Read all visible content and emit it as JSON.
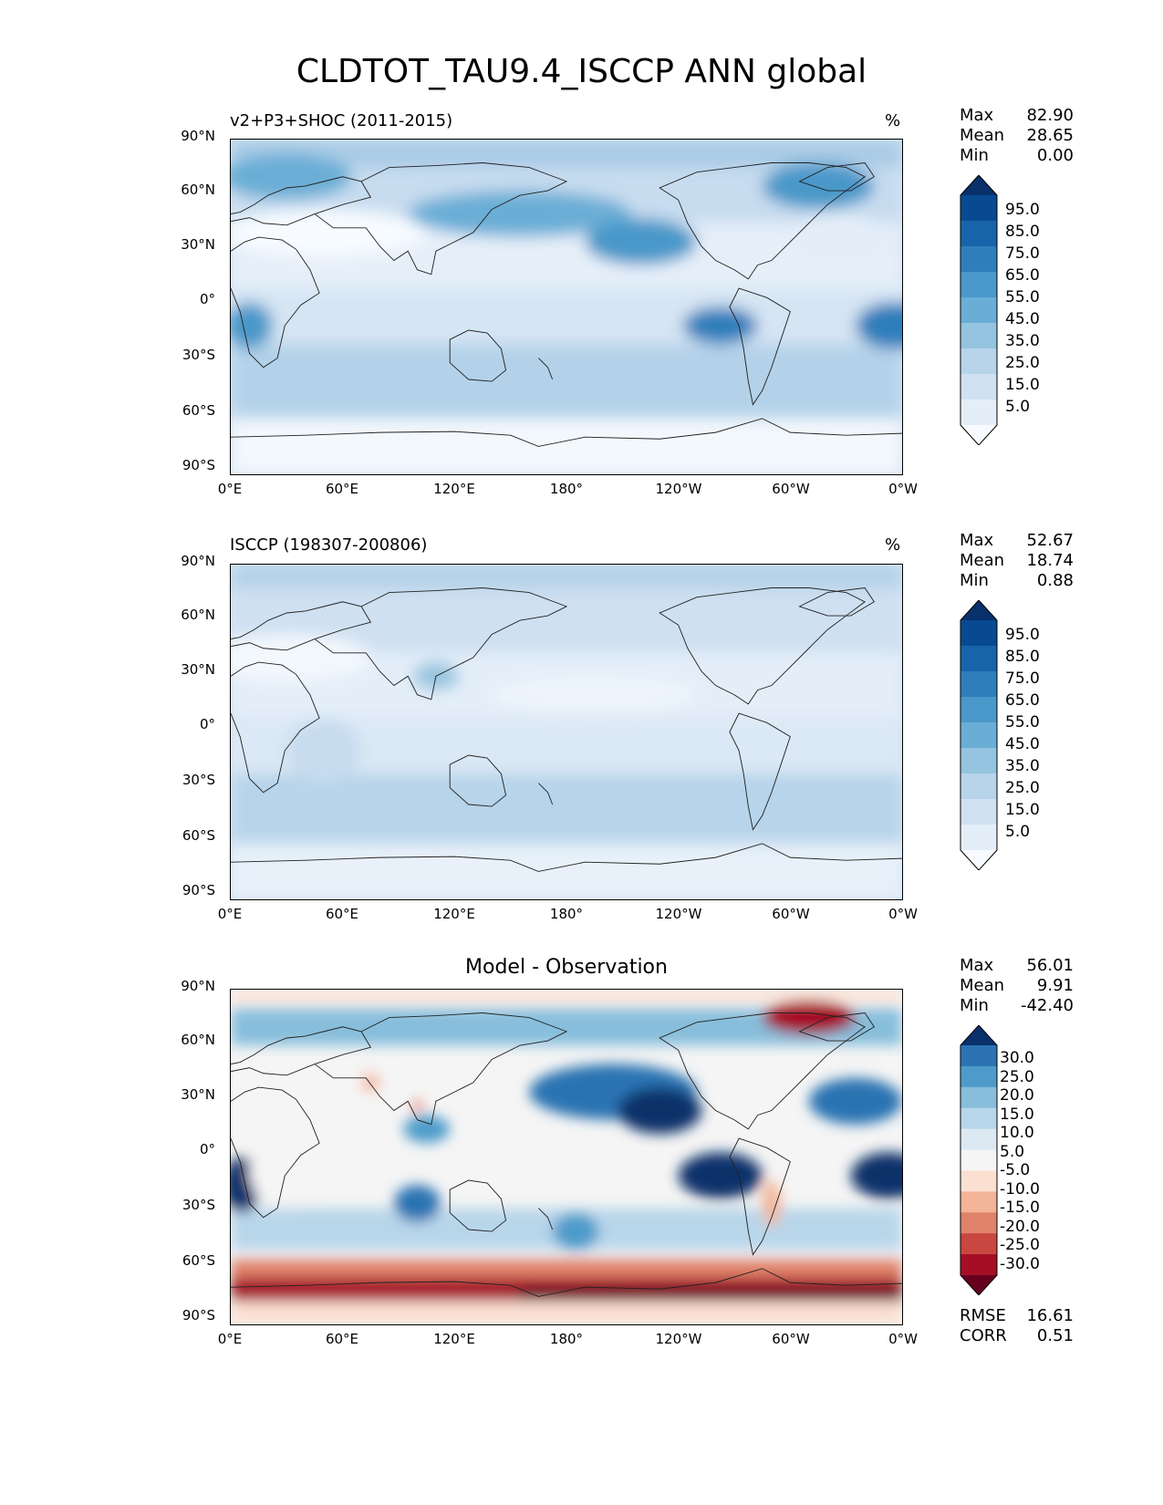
{
  "title": "CLDTOT_TAU9.4_ISCCP ANN global",
  "panels": [
    {
      "id": "test",
      "title_left": "v2+P3+SHOC (2011-2015)",
      "title_right": "%",
      "title_center": "",
      "stats": [
        [
          "Max",
          "82.90"
        ],
        [
          "Mean",
          "28.65"
        ],
        [
          "Min",
          "0.00"
        ]
      ],
      "colorbar_labels": [
        "95.0",
        "85.0",
        "75.0",
        "65.0",
        "55.0",
        "45.0",
        "35.0",
        "25.0",
        "15.0",
        "5.0"
      ],
      "colormap": "Blues"
    },
    {
      "id": "reference",
      "title_left": "ISCCP (198307-200806)",
      "title_right": "%",
      "title_center": "",
      "stats": [
        [
          "Max",
          "52.67"
        ],
        [
          "Mean",
          "18.74"
        ],
        [
          "Min",
          "0.88"
        ]
      ],
      "colorbar_labels": [
        "95.0",
        "85.0",
        "75.0",
        "65.0",
        "55.0",
        "45.0",
        "35.0",
        "25.0",
        "15.0",
        "5.0"
      ],
      "colormap": "Blues"
    },
    {
      "id": "difference",
      "title_left": "",
      "title_right": "",
      "title_center": "Model - Observation",
      "stats": [
        [
          "Max",
          "56.01"
        ],
        [
          "Mean",
          "9.91"
        ],
        [
          "Min",
          "-42.40"
        ]
      ],
      "colorbar_labels": [
        "30.0",
        "25.0",
        "20.0",
        "15.0",
        "10.0",
        "5.0",
        "-5.0",
        "-10.0",
        "-15.0",
        "-20.0",
        "-25.0",
        "-30.0"
      ],
      "colormap": "RdBu",
      "extra_stats": [
        [
          "RMSE",
          "16.61"
        ],
        [
          "CORR",
          "0.51"
        ]
      ]
    }
  ],
  "lat_ticks": [
    "90°N",
    "60°N",
    "30°N",
    "0°",
    "30°S",
    "60°S",
    "90°S"
  ],
  "lon_ticks": [
    "0°E",
    "60°E",
    "120°E",
    "180°",
    "120°W",
    "60°W",
    "0°W"
  ],
  "colors": {
    "blues": [
      "#f7fbff",
      "#e4eef9",
      "#d0e1f2",
      "#b7d4ea",
      "#94c4df",
      "#6aaed6",
      "#4a98c9",
      "#2e7ebc",
      "#1764ab",
      "#084a91",
      "#08306b"
    ],
    "rdbu": [
      "#67001f",
      "#a50f26",
      "#c94741",
      "#e0826a",
      "#f4b498",
      "#fbe0d2",
      "#f5f5f5",
      "#dce9f2",
      "#b8d6ea",
      "#87bedc",
      "#4e9bca",
      "#2b73b2",
      "#08306b"
    ]
  }
}
